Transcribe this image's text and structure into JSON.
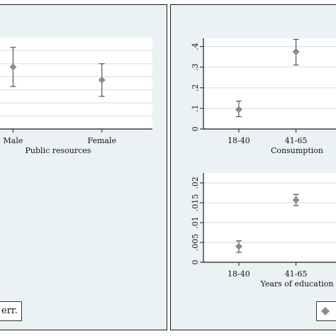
{
  "colors": {
    "panel_bg": "#eaf2f3",
    "plot_bg": "#ffffff",
    "grid": "#cfdde2",
    "marker": "#8c8c8c",
    "errorbar": "#555555",
    "axis": "#1a1a1a"
  },
  "legend": {
    "left_text": "err.",
    "right_marker_icon": "diamond-icon"
  },
  "chart_data": [
    {
      "id": "public-resources",
      "type": "scatter",
      "xlabel": "Public resources",
      "ylabel": "",
      "categories": [
        "Male",
        "Female"
      ],
      "series": [
        {
          "values": [
            0.34,
            0.3
          ],
          "ci_low": [
            0.28,
            0.25
          ],
          "ci_high": [
            0.4,
            0.35
          ]
        }
      ],
      "ylim": [
        0.15,
        0.43
      ],
      "yticks": [],
      "grid": true,
      "errorbars": true
    },
    {
      "id": "consumption",
      "type": "scatter",
      "xlabel": "Consumption",
      "ylabel": "",
      "categories": [
        "18-40",
        "41-65"
      ],
      "series": [
        {
          "values": [
            0.095,
            0.375
          ],
          "ci_low": [
            0.06,
            0.31
          ],
          "ci_high": [
            0.135,
            0.435
          ]
        }
      ],
      "ylim": [
        0,
        0.44
      ],
      "yticks": [
        "0",
        ".1",
        ".2",
        ".3",
        ".4"
      ],
      "grid": true,
      "errorbars": true
    },
    {
      "id": "years-of-education",
      "type": "scatter",
      "xlabel": "Years of education",
      "ylabel": "",
      "categories": [
        "18-40",
        "41-65"
      ],
      "series": [
        {
          "values": [
            0.004,
            0.0157
          ],
          "ci_low": [
            0.0025,
            0.0143
          ],
          "ci_high": [
            0.0054,
            0.0171
          ]
        }
      ],
      "ylim": [
        0,
        0.0225
      ],
      "yticks": [
        "0",
        ".005",
        ".01",
        ".015",
        ".02"
      ],
      "grid": true,
      "errorbars": true
    }
  ]
}
